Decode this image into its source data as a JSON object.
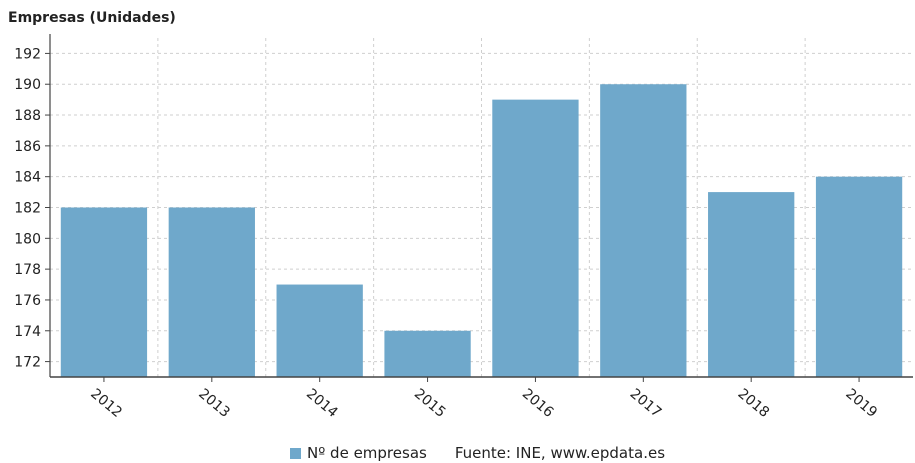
{
  "chart_data": {
    "type": "bar",
    "ylabel": "Empresas (Unidades)",
    "categories": [
      "2012",
      "2013",
      "2014",
      "2015",
      "2016",
      "2017",
      "2018",
      "2019"
    ],
    "series": [
      {
        "name": "Nº de empresas",
        "values": [
          182,
          182,
          177,
          174,
          189,
          190,
          183,
          184
        ]
      }
    ],
    "ylim": [
      171,
      193
    ],
    "yticks": [
      172,
      174,
      176,
      178,
      180,
      182,
      184,
      186,
      188,
      190,
      192
    ],
    "grid": true,
    "legend_position": "bottom",
    "bar_color": "#6fa8cb",
    "source": "Fuente: INE, www.epdata.es"
  }
}
